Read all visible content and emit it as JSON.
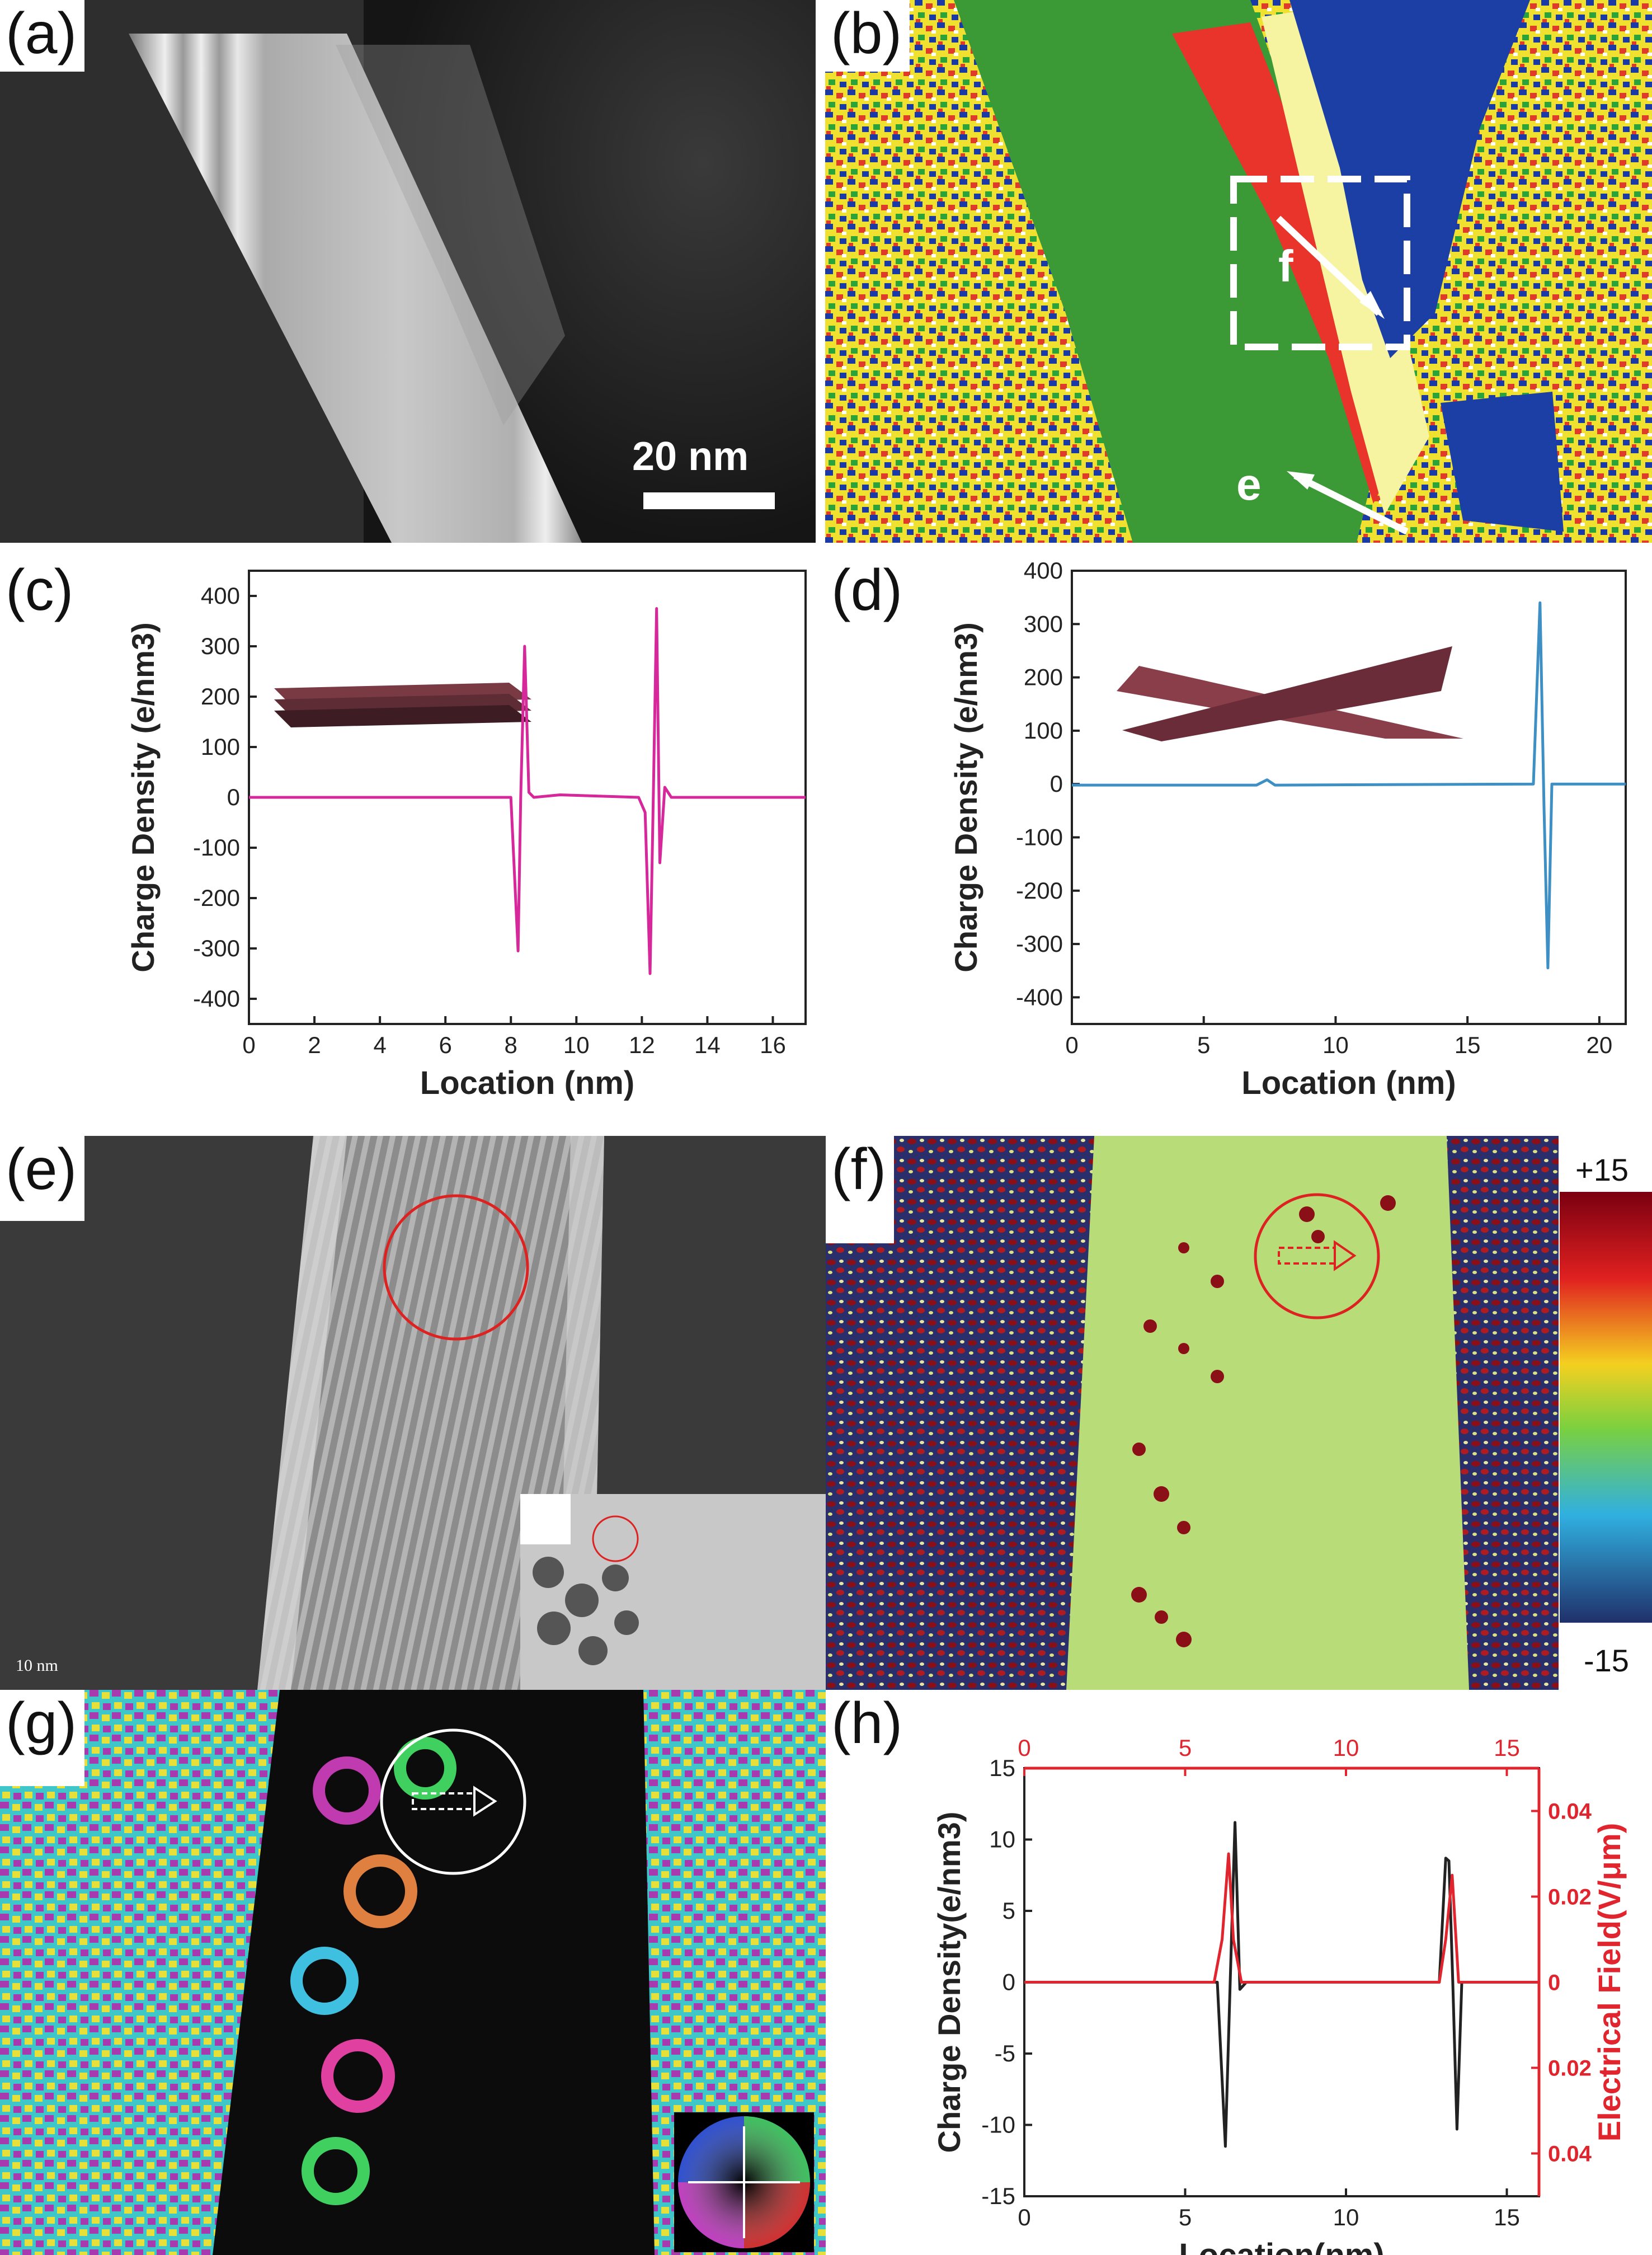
{
  "panels": {
    "a": {
      "label": "(a)",
      "scalebar": "20 nm"
    },
    "b": {
      "label": "(b)",
      "marker_f": "f",
      "marker_e": "e"
    },
    "c": {
      "label": "(c)"
    },
    "d": {
      "label": "(d)"
    },
    "e": {
      "label": "(e)",
      "scalebar": "10 nm"
    },
    "f": {
      "label": "(f)",
      "colorbar_max": "+15",
      "colorbar_min": "-15"
    },
    "g": {
      "label": "(g)"
    },
    "h": {
      "label": "(h)"
    }
  },
  "chart_data": [
    {
      "id": "c",
      "type": "line",
      "xlabel": "Location (nm)",
      "ylabel": "Charge Density (e/nm3)",
      "xlim": [
        0,
        17
      ],
      "ylim": [
        -450,
        450
      ],
      "xticks": [
        0,
        2,
        4,
        6,
        8,
        10,
        12,
        14,
        16
      ],
      "yticks": [
        -400,
        -300,
        -200,
        -100,
        0,
        100,
        200,
        300,
        400
      ],
      "color": "#d6289a",
      "x": [
        0,
        8.0,
        8.22,
        8.3,
        8.42,
        8.55,
        8.7,
        9.5,
        11.9,
        12.1,
        12.25,
        12.35,
        12.45,
        12.55,
        12.7,
        12.9,
        17
      ],
      "y": [
        0,
        0,
        -305,
        0,
        300,
        10,
        0,
        5,
        0,
        -30,
        -350,
        0,
        375,
        -130,
        20,
        0,
        0
      ]
    },
    {
      "id": "d",
      "type": "line",
      "xlabel": "Location (nm)",
      "ylabel": "Charge Density (e/nm3)",
      "xlim": [
        0,
        21
      ],
      "ylim": [
        -450,
        400
      ],
      "xticks": [
        0,
        5,
        10,
        15,
        20
      ],
      "yticks": [
        -400,
        -300,
        -200,
        -100,
        0,
        100,
        200,
        300,
        400
      ],
      "color": "#3d8fc4",
      "x": [
        0,
        7.0,
        7.4,
        7.7,
        17.5,
        17.75,
        17.9,
        18.05,
        18.2,
        21
      ],
      "y": [
        -2,
        -2,
        8,
        -2,
        0,
        340,
        -40,
        -345,
        0,
        0
      ]
    },
    {
      "id": "h",
      "type": "line",
      "xlabel": "Location(nm)",
      "ylabel": "Charge Density(e/nm3)",
      "y2label": "Electrical Field(V/μm)",
      "xlim": [
        0,
        16
      ],
      "ylim": [
        -15,
        15
      ],
      "xticks": [
        0,
        5,
        10,
        15
      ],
      "yticks": [
        -15,
        -10,
        -5,
        0,
        5,
        10,
        15
      ],
      "y2lim": [
        -0.05,
        0.05
      ],
      "y2ticks": [
        0.04,
        0.02,
        0,
        0.02,
        0.04
      ],
      "x2ticks": [
        0,
        5,
        10,
        15
      ],
      "series": [
        {
          "color": "#222222",
          "x": [
            0,
            6.0,
            6.25,
            6.4,
            6.55,
            6.7,
            6.9,
            12.9,
            13.1,
            13.2,
            13.32,
            13.45,
            13.6,
            16
          ],
          "y": [
            0,
            0,
            -11.5,
            0,
            11.2,
            -0.5,
            0,
            0,
            8.7,
            8.5,
            0,
            -10.3,
            0,
            0
          ]
        },
        {
          "color": "#e0252e",
          "x": [
            0,
            5.9,
            6.15,
            6.35,
            6.5,
            6.75,
            12.9,
            13.1,
            13.3,
            13.5,
            16
          ],
          "y": [
            0,
            0,
            0.01,
            0.03,
            0.01,
            0,
            0,
            0.01,
            0.025,
            0,
            0
          ]
        }
      ]
    }
  ]
}
